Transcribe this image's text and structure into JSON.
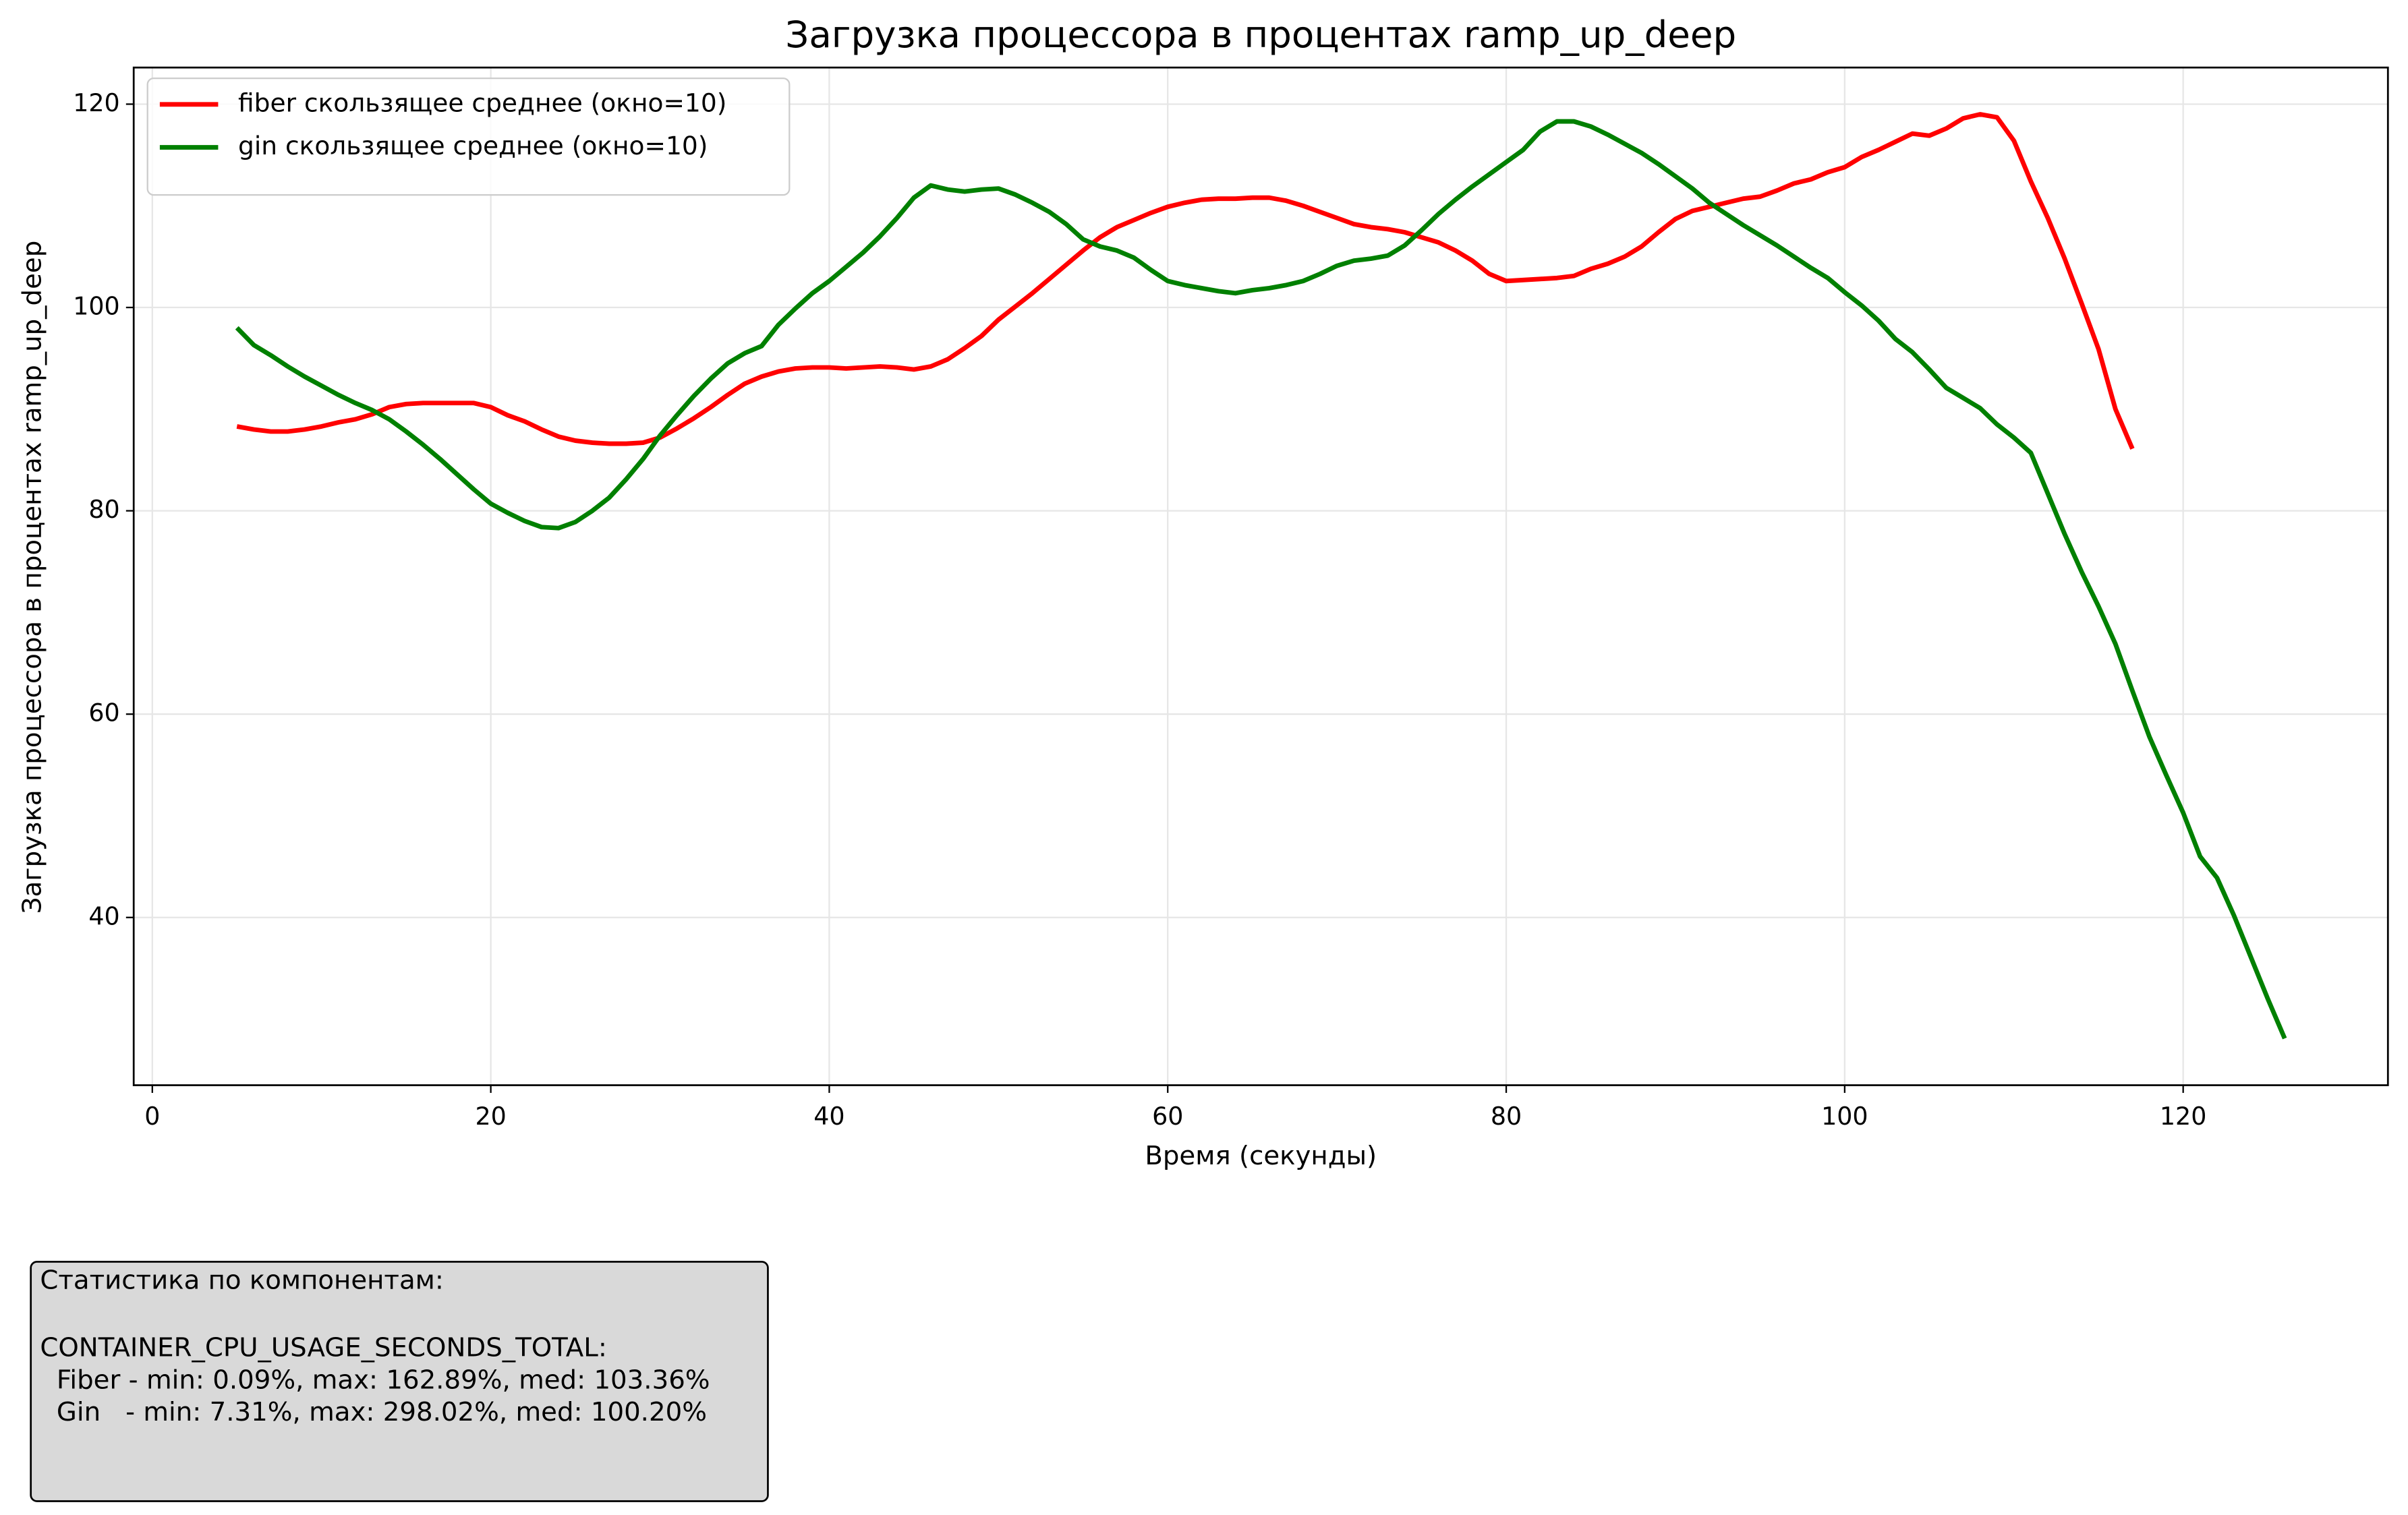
{
  "chart_data": {
    "type": "line",
    "title": "Загрузка процессора в процентах ramp_up_deep",
    "x_label": "Время (секунды)",
    "y_label": "Загрузка процессора в процентах ramp_up_deep",
    "x": [
      5,
      6,
      7,
      8,
      9,
      10,
      11,
      12,
      13,
      14,
      15,
      16,
      17,
      18,
      19,
      20,
      21,
      22,
      23,
      24,
      25,
      26,
      27,
      28,
      29,
      30,
      31,
      32,
      33,
      34,
      35,
      36,
      37,
      38,
      39,
      40,
      41,
      42,
      43,
      44,
      45,
      46,
      47,
      48,
      49,
      50,
      51,
      52,
      53,
      54,
      55,
      56,
      57,
      58,
      59,
      60,
      61,
      62,
      63,
      64,
      65,
      66,
      67,
      68,
      69,
      70,
      71,
      72,
      73,
      74,
      75,
      76,
      77,
      78,
      79,
      80,
      81,
      82,
      83,
      84,
      85,
      86,
      87,
      88,
      89,
      90,
      91,
      92,
      93,
      94,
      95,
      96,
      97,
      98,
      99,
      100,
      101,
      102,
      103,
      104,
      105,
      106,
      107,
      108,
      109,
      110,
      111,
      112,
      113,
      114,
      115,
      116,
      117,
      118,
      119,
      120,
      121,
      122,
      123,
      124,
      125,
      126
    ],
    "series": [
      {
        "name": "fiber скользящее среднее (окно=10)",
        "color": "#ff0000",
        "values": [
          88.3,
          88,
          87.8,
          87.8,
          88,
          88.3,
          88.7,
          89,
          89.5,
          90.2,
          90.5,
          90.6,
          90.6,
          90.6,
          90.6,
          90.2,
          89.4,
          88.8,
          88,
          87.3,
          86.9,
          86.7,
          86.6,
          86.6,
          86.7,
          87.2,
          88.1,
          89.1,
          90.2,
          91.4,
          92.5,
          93.2,
          93.7,
          94,
          94.1,
          94.1,
          94,
          94.1,
          94.2,
          94.1,
          93.9,
          94.2,
          94.9,
          96,
          97.2,
          98.8,
          100.1,
          101.4,
          102.8,
          104.2,
          105.6,
          106.9,
          107.9,
          108.6,
          109.3,
          109.9,
          110.3,
          110.6,
          110.7,
          110.7,
          110.8,
          110.8,
          110.5,
          110,
          109.4,
          108.8,
          108.2,
          107.9,
          107.7,
          107.4,
          106.9,
          106.4,
          105.6,
          104.6,
          103.3,
          102.6,
          102.7,
          102.8,
          102.9,
          103.1,
          103.8,
          104.3,
          105,
          106,
          107.4,
          108.7,
          109.5,
          109.9,
          110.3,
          110.7,
          110.9,
          111.5,
          112.2,
          112.6,
          113.3,
          113.8,
          114.8,
          115.5,
          116.3,
          117.1,
          116.9,
          117.6,
          118.6,
          119,
          118.7,
          116.4,
          112.4,
          108.8,
          104.8,
          100.4,
          95.9,
          90,
          86.1,
          null,
          null,
          null,
          null,
          null,
          null,
          null,
          null,
          null
        ]
      },
      {
        "name": "gin скользящее среднее (окно=10)",
        "color": "#008000",
        "values": [
          98,
          96.3,
          95.3,
          94.2,
          93.2,
          92.3,
          91.4,
          90.6,
          89.9,
          89,
          87.8,
          86.5,
          85.1,
          83.6,
          82.1,
          80.7,
          79.8,
          79,
          78.4,
          78.3,
          78.9,
          80,
          81.3,
          83.1,
          85.1,
          87.4,
          89.4,
          91.3,
          93,
          94.5,
          95.5,
          96.2,
          98.3,
          99.9,
          101.4,
          102.6,
          104,
          105.4,
          107,
          108.8,
          110.8,
          112,
          111.6,
          111.4,
          111.6,
          111.7,
          111.1,
          110.3,
          109.4,
          108.2,
          106.7,
          106,
          105.6,
          104.9,
          103.7,
          102.6,
          102.2,
          101.9,
          101.6,
          101.4,
          101.7,
          101.9,
          102.2,
          102.6,
          103.3,
          104.1,
          104.6,
          104.8,
          105.1,
          106.1,
          107.6,
          109.2,
          110.6,
          111.9,
          113.1,
          114.3,
          115.5,
          117.3,
          118.3,
          118.3,
          117.8,
          117,
          116.1,
          115.2,
          114.1,
          112.9,
          111.7,
          110.3,
          109.2,
          108.1,
          107.1,
          106.1,
          105,
          103.9,
          102.9,
          101.5,
          100.2,
          98.7,
          96.9,
          95.6,
          93.9,
          92.1,
          91.1,
          90.1,
          88.5,
          87.2,
          85.7,
          81.7,
          77.7,
          74,
          70.6,
          66.9,
          62.3,
          57.8,
          54,
          50.3,
          46,
          43.9,
          40.2,
          36.1,
          32,
          28.1
        ]
      }
    ],
    "xlim": [
      -1.1,
      132.1
    ],
    "xticks": [
      0,
      20,
      40,
      60,
      80,
      100,
      120
    ],
    "ylim": [
      23.5,
      123.6
    ],
    "yticks": [
      40,
      60,
      80,
      100,
      120
    ],
    "grid": true,
    "legend": "upper-left"
  },
  "stats_box": {
    "lines": [
      "Статистика по компонентам:",
      "CONTAINER_CPU_USAGE_SECONDS_TOTAL:",
      "  Fiber - min: 0.09%, max: 162.89%, med: 103.36%",
      "  Gin   - min: 7.31%, max: 298.02%, med: 100.20%"
    ]
  }
}
